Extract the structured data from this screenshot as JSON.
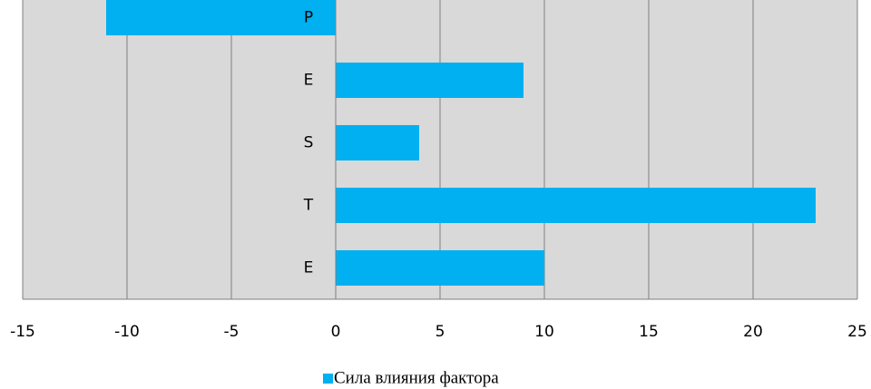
{
  "chart_data": {
    "type": "bar",
    "orientation": "horizontal",
    "categories": [
      "P",
      "E",
      "S",
      "T",
      "E"
    ],
    "series": [
      {
        "name": "Сила влияния фактора",
        "color": "#00b0f0",
        "values": [
          -11,
          9,
          4,
          23,
          10
        ]
      }
    ],
    "xlim": [
      -15,
      25
    ],
    "xticks": [
      -15,
      -10,
      -5,
      0,
      5,
      10,
      15,
      20,
      25
    ],
    "grid": true,
    "legend": "bottom"
  }
}
